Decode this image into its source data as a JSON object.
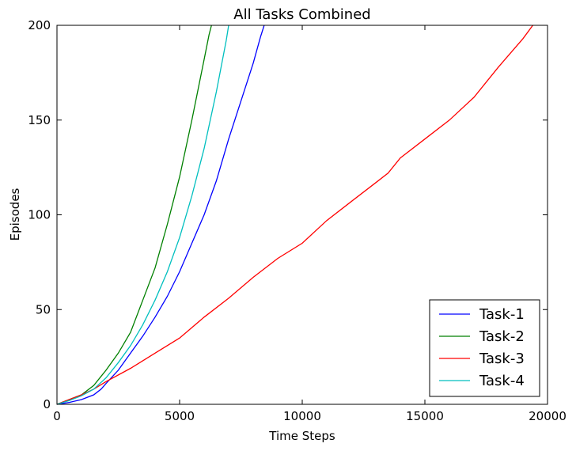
{
  "chart_data": {
    "type": "line",
    "title": "All Tasks Combined",
    "xlabel": "Time Steps",
    "ylabel": "Episodes",
    "xlim": [
      0,
      20000
    ],
    "ylim": [
      0,
      200
    ],
    "xticks": [
      0,
      5000,
      10000,
      15000,
      20000
    ],
    "yticks": [
      0,
      50,
      100,
      150,
      200
    ],
    "grid": false,
    "legend_position": "bottom-right",
    "series": [
      {
        "name": "Task-1",
        "color": "#0000ff",
        "x": [
          0,
          500,
          1000,
          1500,
          1800,
          2000,
          2500,
          3000,
          3500,
          4000,
          4500,
          5000,
          5500,
          6000,
          6500,
          7000,
          7500,
          8000,
          8300,
          8450
        ],
        "y": [
          0,
          1,
          2.5,
          5,
          8,
          11,
          18,
          27,
          36,
          46,
          57,
          70,
          85,
          100,
          118,
          140,
          160,
          180,
          194,
          200
        ]
      },
      {
        "name": "Task-2",
        "color": "#008000",
        "x": [
          0,
          500,
          1000,
          1500,
          2000,
          2500,
          3000,
          3500,
          4000,
          4500,
          5000,
          5500,
          6000,
          6200,
          6300
        ],
        "y": [
          0,
          2.5,
          5,
          10,
          18,
          27,
          38,
          55,
          72,
          95,
          120,
          150,
          182,
          195,
          200
        ]
      },
      {
        "name": "Task-3",
        "color": "#ff0000",
        "x": [
          0,
          500,
          1000,
          1500,
          2000,
          3000,
          4000,
          5000,
          6000,
          7000,
          8000,
          9000,
          10000,
          11000,
          12000,
          13000,
          13500,
          14000,
          15000,
          16000,
          17000,
          18000,
          19000,
          19400
        ],
        "y": [
          0,
          2.5,
          5,
          8,
          12,
          19,
          27,
          35,
          46,
          56,
          67,
          77,
          85,
          97,
          107,
          117,
          122,
          130,
          140,
          150,
          162,
          178,
          193,
          200
        ]
      },
      {
        "name": "Task-4",
        "color": "#00bfbf",
        "x": [
          0,
          500,
          1000,
          1500,
          2000,
          2500,
          3000,
          3500,
          4000,
          4500,
          5000,
          5500,
          6000,
          6500,
          6900,
          7000
        ],
        "y": [
          0,
          2,
          4.5,
          8,
          14,
          22,
          31,
          42,
          55,
          70,
          88,
          110,
          135,
          165,
          192,
          200
        ]
      }
    ]
  }
}
